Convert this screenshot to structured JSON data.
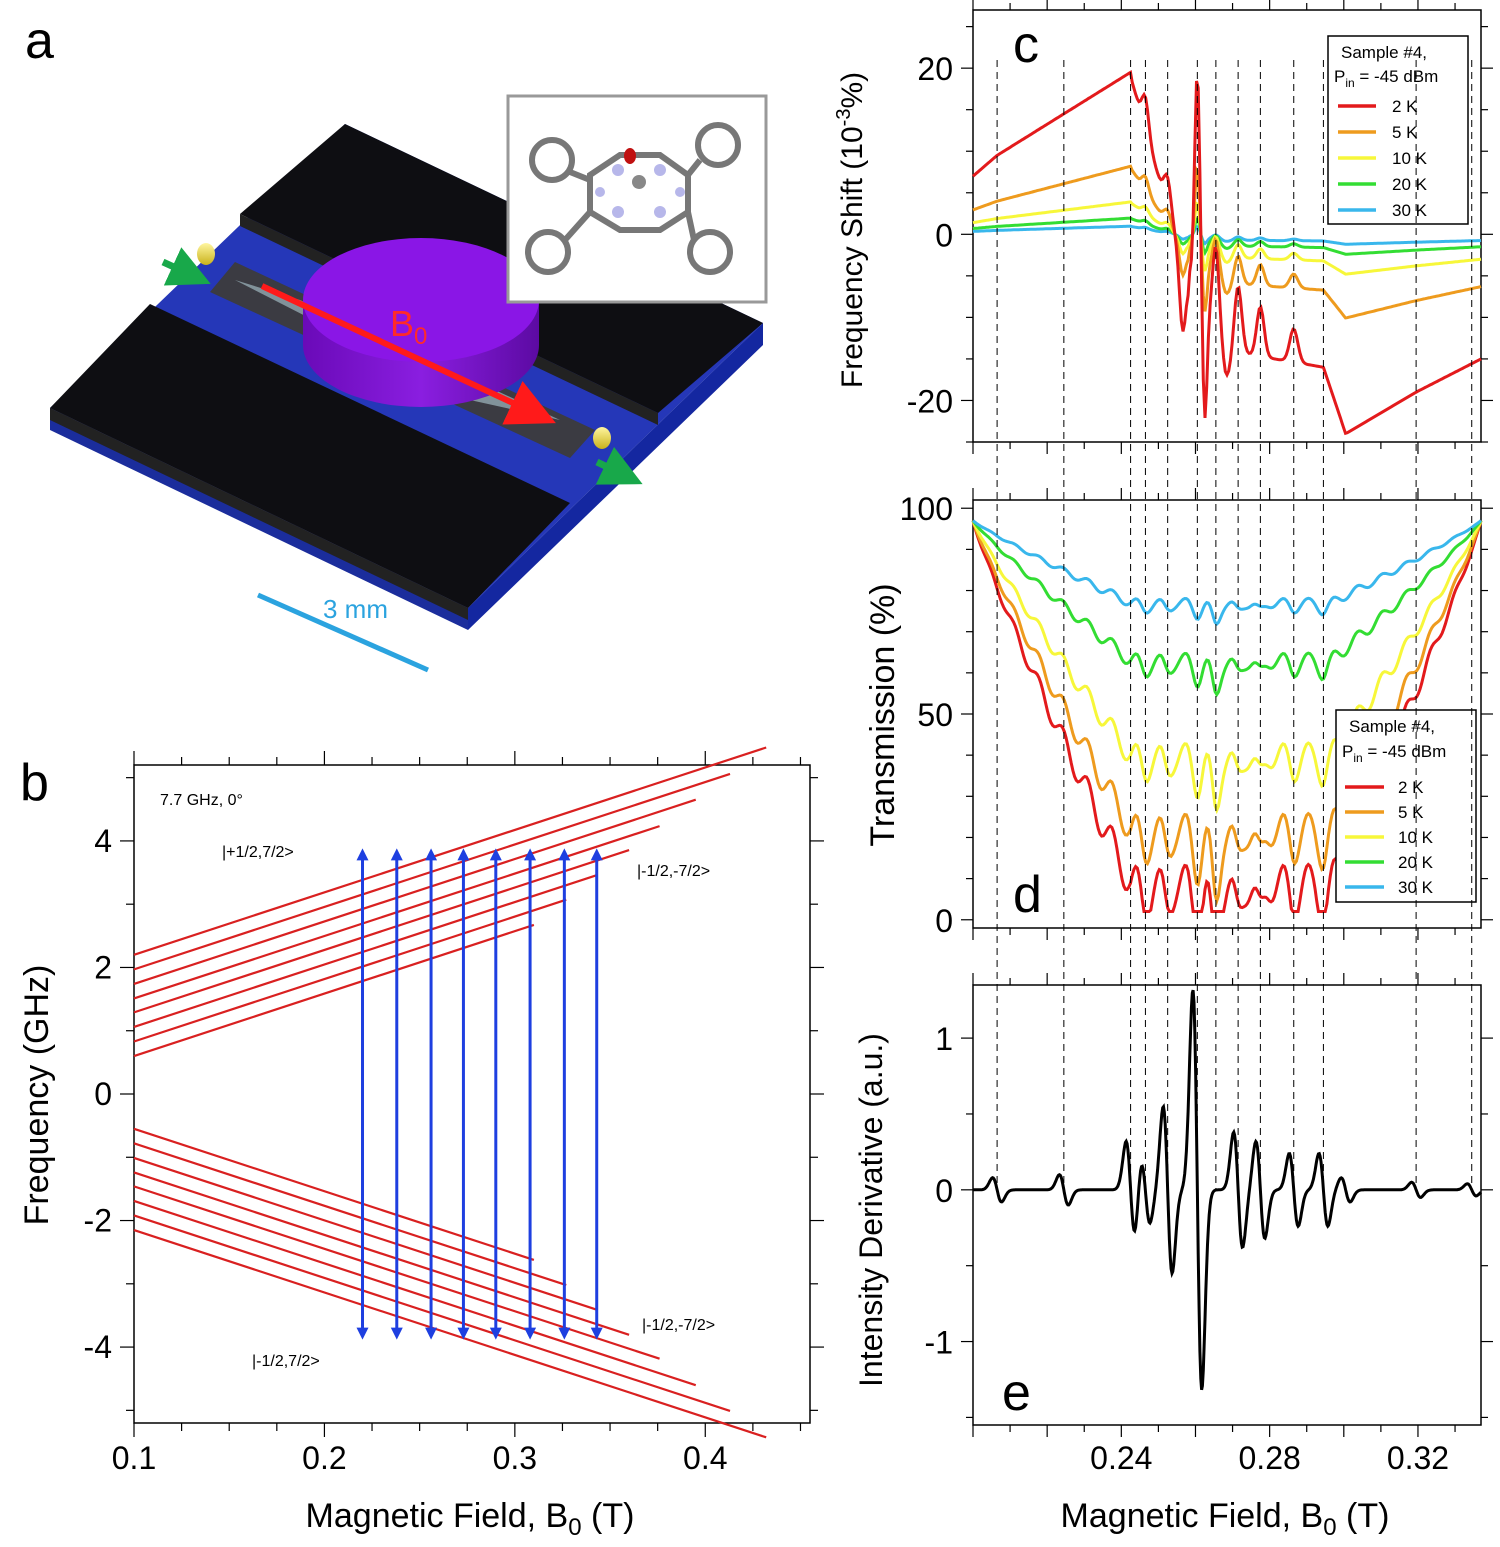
{
  "figure": {
    "panel_labels": {
      "a": "a",
      "b": "b",
      "c": "c",
      "d": "d",
      "e": "e"
    },
    "colors": {
      "red": "#e31a1c",
      "orange": "#ee9b1e",
      "yellow": "#f7f73a",
      "green": "#33dd33",
      "blue": "#39b7ec",
      "arrow_blue": "#1e3fe0",
      "level_red": "#d92020"
    }
  },
  "panel_a": {
    "field_label": "B",
    "field_sub": "0",
    "scale_label": "3 mm"
  },
  "chart_data": [
    {
      "panel": "b",
      "type": "line",
      "annotation": "7.7 GHz, 0°",
      "xlabel": "Magnetic Field, B",
      "xlabel_sub": "0",
      "xlabel_unit": " (T)",
      "ylabel": "Frequency (GHz)",
      "xlim": [
        0.1,
        0.455
      ],
      "ylim": [
        -5.2,
        5.2
      ],
      "xticks": [
        0.1,
        0.2,
        0.3,
        0.4
      ],
      "xtick_labels": [
        "0.1",
        "0.2",
        "0.3",
        "0.4"
      ],
      "yticks": [
        -4,
        -2,
        0,
        2,
        4
      ],
      "ytick_labels": [
        "-4",
        "-2",
        "0",
        "2",
        "4"
      ],
      "upper_levels": {
        "slope": 9.87,
        "intercepts_at_0p1": [
          0.6,
          0.83,
          1.06,
          1.29,
          1.51,
          1.74,
          1.97,
          2.2
        ],
        "x_end": [
          0.31,
          0.327,
          0.343,
          0.36,
          0.376,
          0.395,
          0.413,
          0.432
        ]
      },
      "lower_levels": {
        "slope": -9.87,
        "intercepts_at_0p1": [
          -0.55,
          -0.78,
          -1.01,
          -1.24,
          -1.46,
          -1.69,
          -1.92,
          -2.15
        ],
        "x_end": [
          0.31,
          0.327,
          0.343,
          0.36,
          0.376,
          0.395,
          0.413,
          0.432
        ]
      },
      "transitions_x": [
        0.22,
        0.238,
        0.256,
        0.273,
        0.29,
        0.308,
        0.326,
        0.343
      ],
      "transition_freq": [
        -3.85,
        3.85
      ],
      "level_labels": [
        "|+1/2,7/2>",
        "|-1/2,-7/2>",
        "|-1/2,-7/2>",
        "|-1/2,7/2>"
      ]
    },
    {
      "panel": "c",
      "type": "line",
      "ylabel": "Frequency Shift (10",
      "ylabel_sup": "-3",
      "ylabel_end": "%)",
      "xlim": [
        0.2,
        0.337
      ],
      "ylim": [
        -25,
        27
      ],
      "yticks": [
        -20,
        0,
        20
      ],
      "ytick_labels": [
        "-20",
        "0",
        "20"
      ],
      "legend": {
        "title1": "Sample #4,",
        "title2": "P",
        "title2_sub": "in",
        "title2_end": " = -45 dBm",
        "entries": [
          "2 K",
          "5 K",
          "10 K",
          "20 K",
          "30 K"
        ]
      },
      "series": [
        {
          "name": "2 K",
          "scale": 1.0
        },
        {
          "name": "5 K",
          "scale": 0.42
        },
        {
          "name": "10 K",
          "scale": 0.2
        },
        {
          "name": "20 K",
          "scale": 0.1
        },
        {
          "name": "30 K",
          "scale": 0.05
        }
      ]
    },
    {
      "panel": "d",
      "type": "line",
      "ylabel": "Transmission (%)",
      "xlim": [
        0.2,
        0.337
      ],
      "ylim": [
        -2,
        102
      ],
      "yticks": [
        0,
        50,
        100
      ],
      "ytick_labels": [
        "0",
        "50",
        "100"
      ],
      "legend": {
        "title1": "Sample #4,",
        "title2": "P",
        "title2_sub": "in",
        "title2_end": " = -45 dBm",
        "entries": [
          "2 K",
          "5 K",
          "10 K",
          "20 K",
          "30 K"
        ]
      },
      "series": [
        {
          "name": "2 K",
          "floor": 9
        },
        {
          "name": "5 K",
          "floor": 22
        },
        {
          "name": "10 K",
          "floor": 40
        },
        {
          "name": "20 K",
          "floor": 63
        },
        {
          "name": "30 K",
          "floor": 77
        }
      ]
    },
    {
      "panel": "e",
      "type": "line",
      "ylabel": "Intensity Derivative (a.u.)",
      "xlabel": "Magnetic Field, B",
      "xlabel_sub": "0",
      "xlabel_unit": " (T)",
      "xlim": [
        0.2,
        0.337
      ],
      "ylim": [
        -1.55,
        1.35
      ],
      "xticks": [
        0.24,
        0.28,
        0.32
      ],
      "xtick_labels": [
        "0.24",
        "0.28",
        "0.32"
      ],
      "yticks": [
        -1,
        0,
        1
      ],
      "ytick_labels": [
        "-1",
        "0",
        "1"
      ]
    }
  ],
  "resonance_fields": [
    0.2065,
    0.2245,
    0.2425,
    0.2465,
    0.2525,
    0.2605,
    0.2655,
    0.2715,
    0.2775,
    0.2865,
    0.2945,
    0.3195,
    0.3345
  ]
}
